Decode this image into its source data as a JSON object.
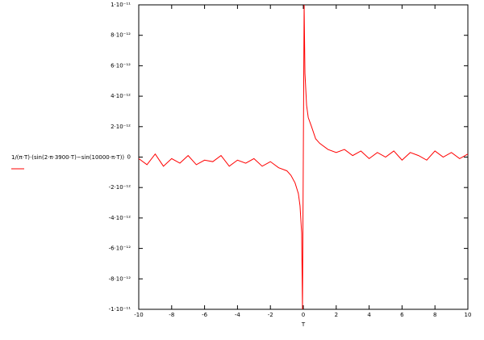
{
  "chart_data": {
    "type": "line",
    "xlabel": "T",
    "x": [
      -10,
      -9.5,
      -9,
      -8.5,
      -8,
      -7.5,
      -7,
      -6.5,
      -6,
      -5.5,
      -5,
      -4.5,
      -4,
      -3.5,
      -3,
      -2.5,
      -2,
      -1.5,
      -1,
      -0.75,
      -0.5,
      -0.3,
      -0.2,
      -0.1,
      -0.05,
      0.05,
      0.1,
      0.2,
      0.3,
      0.5,
      0.75,
      1,
      1.5,
      2,
      2.5,
      3,
      3.5,
      4,
      4.5,
      5,
      5.5,
      6,
      6.5,
      7,
      7.5,
      8,
      8.5,
      9,
      9.5,
      10
    ],
    "series": [
      {
        "name": "1/(π·T)·(sin(2·π·3900·T)−sin(10000·π·T))",
        "color": "#ff0000",
        "values": [
          -1e-13,
          -5e-13,
          2e-13,
          -6e-13,
          -1e-13,
          -4e-13,
          1e-13,
          -5e-13,
          -2e-13,
          -3e-13,
          1e-13,
          -6e-13,
          -2e-13,
          -4e-13,
          -1e-13,
          -6e-13,
          -3e-13,
          -7e-13,
          -9e-13,
          -1.2e-12,
          -1.7e-12,
          -2.4e-12,
          -3.2e-12,
          -5e-12,
          -1e-11,
          1e-11,
          5.5e-12,
          3.4e-12,
          2.6e-12,
          2e-12,
          1.2e-12,
          9e-13,
          5e-13,
          3e-13,
          5e-13,
          1e-13,
          4e-13,
          -1e-13,
          3e-13,
          0,
          4e-13,
          -2e-13,
          3e-13,
          1e-13,
          -2e-13,
          4e-13,
          0,
          3e-13,
          -1e-13,
          2e-13
        ]
      }
    ],
    "xlim": [
      -10,
      10
    ],
    "xticks": [
      -10,
      -8,
      -6,
      -4,
      -2,
      0,
      2,
      4,
      6,
      8,
      10
    ],
    "ylim": [
      -1e-11,
      1e-11
    ],
    "yticks": [
      {
        "value": -1e-11,
        "label": "-1·10⁻¹¹"
      },
      {
        "value": -8e-12,
        "label": "-8·10⁻¹²"
      },
      {
        "value": -6e-12,
        "label": "-6·10⁻¹²"
      },
      {
        "value": -4e-12,
        "label": "-4·10⁻¹²"
      },
      {
        "value": -2e-12,
        "label": "-2·10⁻¹²"
      },
      0,
      {
        "value": 2e-12,
        "label": "2·10⁻¹²"
      },
      {
        "value": 4e-12,
        "label": "4·10⁻¹²"
      },
      {
        "value": 6e-12,
        "label": "6·10⁻¹²"
      },
      {
        "value": 8e-12,
        "label": "8·10⁻¹²"
      },
      {
        "value": 1e-11,
        "label": "1·10⁻¹¹"
      }
    ],
    "grid": false
  }
}
